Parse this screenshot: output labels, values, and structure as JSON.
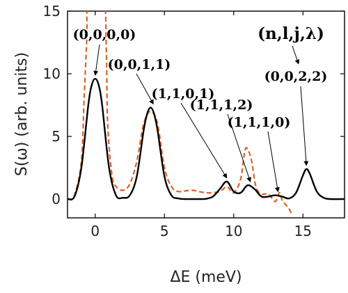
{
  "chart_data": {
    "type": "line",
    "xlabel": "ΔE (meV)",
    "ylabel": "S(ω) (arb. units)",
    "xlim": [
      -2,
      18
    ],
    "ylim": [
      -1.5,
      15
    ],
    "xticks": [
      0,
      5,
      10,
      15
    ],
    "yticks": [
      0,
      5,
      10,
      15
    ],
    "grid": false,
    "series": [
      {
        "style": "solid",
        "color": "#000000",
        "x": [
          -2,
          -1.5,
          -1,
          -0.5,
          -0.25,
          0,
          0.25,
          0.5,
          1,
          1.5,
          2,
          2.5,
          3,
          3.5,
          3.75,
          4,
          4.25,
          4.5,
          5,
          5.5,
          6,
          6.5,
          7,
          7.5,
          8,
          8.5,
          9,
          9.5,
          10,
          10.5,
          11,
          11.5,
          12,
          12.5,
          13,
          13.5,
          14,
          14.5,
          15,
          15.25,
          15.5,
          16,
          16.5,
          17,
          18
        ],
        "y": [
          0,
          0.2,
          2.5,
          7.5,
          9.1,
          9.6,
          9.1,
          7.5,
          2.5,
          0.3,
          0.1,
          0.3,
          1.8,
          5.5,
          6.8,
          7.3,
          6.8,
          5.5,
          1.8,
          0.3,
          0.05,
          0,
          0,
          0,
          0.02,
          0.2,
          0.8,
          1.4,
          0.6,
          0.5,
          1.1,
          0.8,
          0.2,
          0.2,
          0.3,
          0.2,
          0.05,
          0.5,
          1.9,
          2.4,
          2.0,
          0.6,
          0.1,
          0,
          0
        ]
      },
      {
        "style": "dashed",
        "color": "#d9622b",
        "x": [
          -2,
          -1.5,
          -1,
          -0.8,
          -0.6,
          -0.5,
          0.6,
          0.8,
          0.9,
          1.2,
          1.5,
          2,
          2.5,
          3,
          3.5,
          4,
          4.5,
          5,
          5.5,
          6,
          7,
          8,
          9,
          9.5,
          10,
          10.5,
          10.8,
          11,
          11.3,
          11.6,
          12,
          12.5,
          13,
          13.3,
          13.5,
          13.8,
          14,
          14.2
        ],
        "y": [
          0,
          0.3,
          3,
          8,
          13,
          16,
          16,
          12,
          6,
          2,
          1,
          0.7,
          1.2,
          3,
          6,
          7,
          6,
          2.5,
          1,
          0.6,
          0.7,
          0.5,
          0.6,
          1.0,
          0.5,
          1.6,
          3.8,
          4.0,
          3.0,
          1.0,
          0.4,
          0.4,
          -0.2,
          0.5,
          -0.1,
          -0.5,
          -0.8,
          -1.2
        ]
      }
    ],
    "annotations": [
      {
        "text": "(0,0,0,0)",
        "x": 0.0,
        "y": 9.6
      },
      {
        "text": "(0,0,1,1)",
        "x": 4.2,
        "y": 7.3
      },
      {
        "text": "(1,1,0,1)",
        "x": 9.5,
        "y": 1.4
      },
      {
        "text": "(1,1,1,2)",
        "x": 11.2,
        "y": 1.1
      },
      {
        "text": "(1,1,1,0)",
        "x": 13.2,
        "y": 0.3
      },
      {
        "text": "(0,0,2,2)",
        "x": 15.25,
        "y": 2.4
      }
    ],
    "legend_label": "(n,l,j,λ)"
  }
}
